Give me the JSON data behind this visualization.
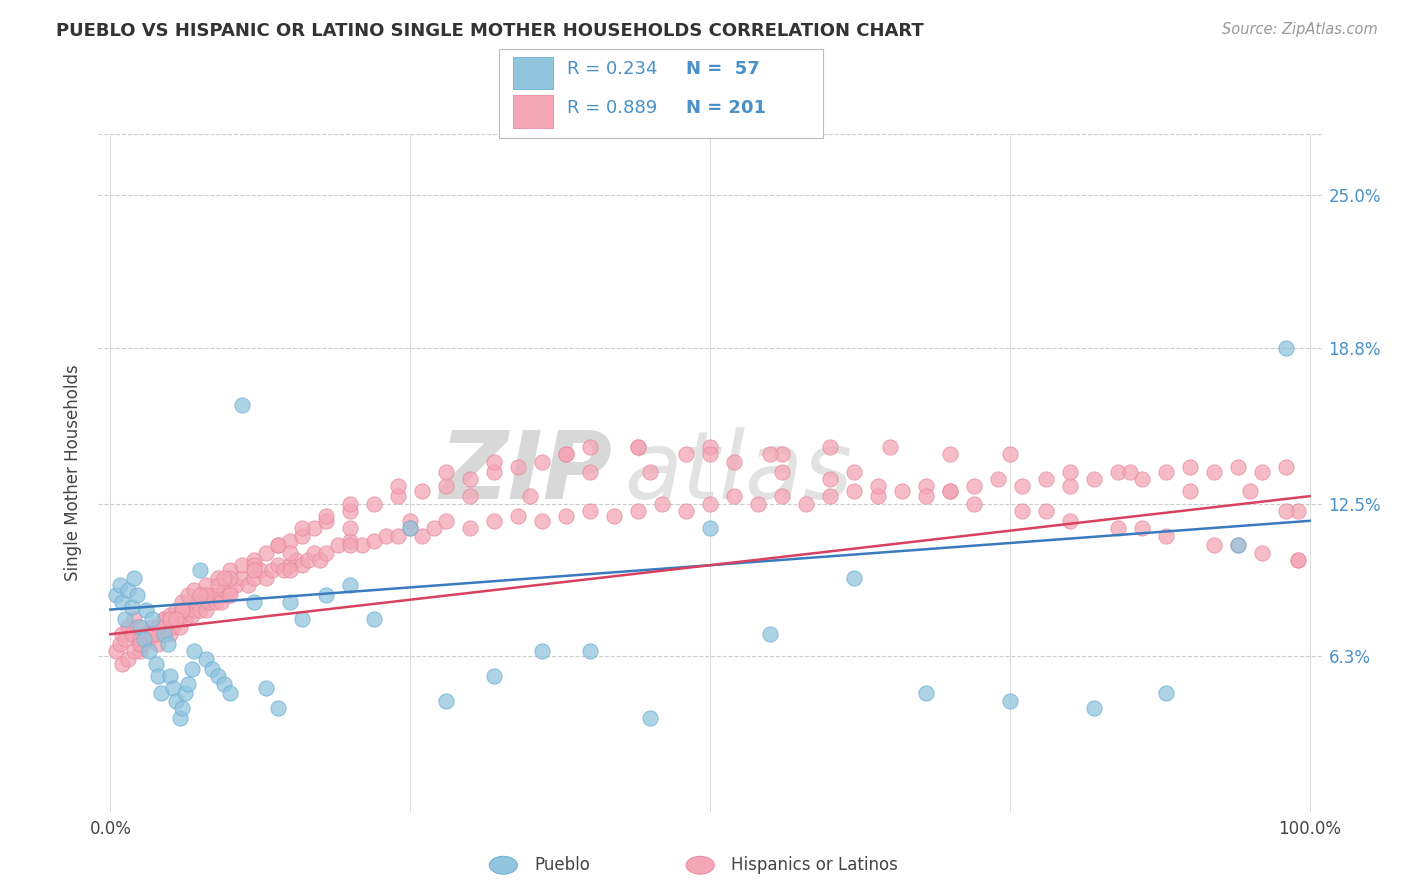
{
  "title": "PUEBLO VS HISPANIC OR LATINO SINGLE MOTHER HOUSEHOLDS CORRELATION CHART",
  "source": "Source: ZipAtlas.com",
  "ylabel": "Single Mother Households",
  "xlim": [
    -0.01,
    1.01
  ],
  "ylim": [
    0.0,
    0.275
  ],
  "xticklabels": [
    "0.0%",
    "100.0%"
  ],
  "ytick_positions": [
    0.063,
    0.125,
    0.188,
    0.25
  ],
  "ytick_labels": [
    "6.3%",
    "12.5%",
    "18.8%",
    "25.0%"
  ],
  "pueblo_color": "#92c5de",
  "hispanic_color": "#f4a6b4",
  "pueblo_edge": "#6aaed6",
  "hispanic_edge": "#e888a0",
  "trend_blue": "#3a7abf",
  "trend_pink": "#d94060",
  "watermark_zip": "ZIP",
  "watermark_atlas": "atlas",
  "background": "#ffffff",
  "legend_label1": "Pueblo",
  "legend_label2": "Hispanics or Latinos",
  "pueblo_x": [
    0.005,
    0.008,
    0.01,
    0.012,
    0.015,
    0.018,
    0.02,
    0.022,
    0.025,
    0.028,
    0.03,
    0.032,
    0.035,
    0.038,
    0.04,
    0.042,
    0.045,
    0.048,
    0.05,
    0.052,
    0.055,
    0.058,
    0.06,
    0.062,
    0.065,
    0.068,
    0.07,
    0.075,
    0.08,
    0.085,
    0.09,
    0.095,
    0.1,
    0.11,
    0.12,
    0.13,
    0.14,
    0.15,
    0.16,
    0.18,
    0.2,
    0.22,
    0.25,
    0.28,
    0.32,
    0.36,
    0.4,
    0.45,
    0.5,
    0.55,
    0.62,
    0.68,
    0.75,
    0.82,
    0.88,
    0.94,
    0.98
  ],
  "pueblo_y": [
    0.088,
    0.092,
    0.085,
    0.078,
    0.09,
    0.083,
    0.095,
    0.088,
    0.075,
    0.07,
    0.082,
    0.065,
    0.078,
    0.06,
    0.055,
    0.048,
    0.072,
    0.068,
    0.055,
    0.05,
    0.045,
    0.038,
    0.042,
    0.048,
    0.052,
    0.058,
    0.065,
    0.098,
    0.062,
    0.058,
    0.055,
    0.052,
    0.048,
    0.165,
    0.085,
    0.05,
    0.042,
    0.085,
    0.078,
    0.088,
    0.092,
    0.078,
    0.115,
    0.045,
    0.055,
    0.065,
    0.065,
    0.038,
    0.115,
    0.072,
    0.095,
    0.048,
    0.045,
    0.042,
    0.048,
    0.108,
    0.188
  ],
  "hispanic_x": [
    0.005,
    0.008,
    0.01,
    0.012,
    0.015,
    0.018,
    0.02,
    0.022,
    0.025,
    0.028,
    0.03,
    0.032,
    0.035,
    0.038,
    0.04,
    0.042,
    0.045,
    0.048,
    0.05,
    0.052,
    0.055,
    0.058,
    0.06,
    0.062,
    0.065,
    0.068,
    0.07,
    0.072,
    0.075,
    0.078,
    0.08,
    0.082,
    0.085,
    0.088,
    0.09,
    0.092,
    0.095,
    0.098,
    0.1,
    0.105,
    0.11,
    0.115,
    0.12,
    0.125,
    0.13,
    0.135,
    0.14,
    0.145,
    0.15,
    0.155,
    0.16,
    0.165,
    0.17,
    0.175,
    0.18,
    0.19,
    0.2,
    0.21,
    0.22,
    0.23,
    0.24,
    0.25,
    0.26,
    0.27,
    0.28,
    0.3,
    0.32,
    0.34,
    0.36,
    0.38,
    0.4,
    0.42,
    0.44,
    0.46,
    0.48,
    0.5,
    0.52,
    0.54,
    0.56,
    0.58,
    0.6,
    0.62,
    0.64,
    0.66,
    0.68,
    0.7,
    0.72,
    0.74,
    0.76,
    0.78,
    0.8,
    0.82,
    0.84,
    0.86,
    0.88,
    0.9,
    0.92,
    0.94,
    0.96,
    0.98,
    0.01,
    0.015,
    0.02,
    0.025,
    0.03,
    0.035,
    0.04,
    0.045,
    0.05,
    0.055,
    0.06,
    0.065,
    0.07,
    0.08,
    0.09,
    0.1,
    0.11,
    0.12,
    0.13,
    0.14,
    0.15,
    0.16,
    0.17,
    0.18,
    0.2,
    0.22,
    0.24,
    0.26,
    0.28,
    0.3,
    0.32,
    0.34,
    0.36,
    0.38,
    0.4,
    0.44,
    0.48,
    0.52,
    0.56,
    0.6,
    0.64,
    0.68,
    0.72,
    0.76,
    0.8,
    0.84,
    0.88,
    0.92,
    0.96,
    0.99,
    0.025,
    0.04,
    0.06,
    0.08,
    0.1,
    0.12,
    0.14,
    0.16,
    0.18,
    0.2,
    0.24,
    0.28,
    0.32,
    0.38,
    0.44,
    0.5,
    0.56,
    0.62,
    0.7,
    0.78,
    0.86,
    0.94,
    0.99,
    0.05,
    0.1,
    0.15,
    0.2,
    0.25,
    0.35,
    0.45,
    0.55,
    0.65,
    0.75,
    0.85,
    0.95,
    0.99,
    0.03,
    0.06,
    0.09,
    0.12,
    0.15,
    0.2,
    0.3,
    0.4,
    0.5,
    0.6,
    0.7,
    0.8,
    0.9,
    0.98,
    0.025,
    0.035,
    0.055,
    0.075,
    0.095
  ],
  "hispanic_y": [
    0.065,
    0.068,
    0.072,
    0.07,
    0.075,
    0.072,
    0.078,
    0.075,
    0.065,
    0.068,
    0.072,
    0.07,
    0.075,
    0.072,
    0.068,
    0.072,
    0.078,
    0.075,
    0.072,
    0.075,
    0.078,
    0.075,
    0.08,
    0.078,
    0.082,
    0.08,
    0.082,
    0.085,
    0.082,
    0.085,
    0.082,
    0.085,
    0.088,
    0.085,
    0.088,
    0.085,
    0.09,
    0.088,
    0.09,
    0.092,
    0.095,
    0.092,
    0.095,
    0.098,
    0.095,
    0.098,
    0.1,
    0.098,
    0.1,
    0.102,
    0.1,
    0.102,
    0.105,
    0.102,
    0.105,
    0.108,
    0.11,
    0.108,
    0.11,
    0.112,
    0.112,
    0.115,
    0.112,
    0.115,
    0.118,
    0.115,
    0.118,
    0.12,
    0.118,
    0.12,
    0.122,
    0.12,
    0.122,
    0.125,
    0.122,
    0.125,
    0.128,
    0.125,
    0.128,
    0.125,
    0.128,
    0.13,
    0.128,
    0.13,
    0.132,
    0.13,
    0.132,
    0.135,
    0.132,
    0.135,
    0.132,
    0.135,
    0.138,
    0.135,
    0.138,
    0.14,
    0.138,
    0.14,
    0.138,
    0.14,
    0.06,
    0.062,
    0.065,
    0.068,
    0.07,
    0.072,
    0.075,
    0.078,
    0.08,
    0.082,
    0.085,
    0.088,
    0.09,
    0.092,
    0.095,
    0.098,
    0.1,
    0.102,
    0.105,
    0.108,
    0.11,
    0.112,
    0.115,
    0.118,
    0.122,
    0.125,
    0.128,
    0.13,
    0.132,
    0.135,
    0.138,
    0.14,
    0.142,
    0.145,
    0.148,
    0.148,
    0.145,
    0.142,
    0.138,
    0.135,
    0.132,
    0.128,
    0.125,
    0.122,
    0.118,
    0.115,
    0.112,
    0.108,
    0.105,
    0.102,
    0.07,
    0.075,
    0.082,
    0.088,
    0.095,
    0.1,
    0.108,
    0.115,
    0.12,
    0.125,
    0.132,
    0.138,
    0.142,
    0.145,
    0.148,
    0.148,
    0.145,
    0.138,
    0.13,
    0.122,
    0.115,
    0.108,
    0.102,
    0.078,
    0.088,
    0.098,
    0.108,
    0.118,
    0.128,
    0.138,
    0.145,
    0.148,
    0.145,
    0.138,
    0.13,
    0.122,
    0.072,
    0.082,
    0.092,
    0.098,
    0.105,
    0.115,
    0.128,
    0.138,
    0.145,
    0.148,
    0.145,
    0.138,
    0.13,
    0.122,
    0.068,
    0.072,
    0.078,
    0.088,
    0.095
  ]
}
